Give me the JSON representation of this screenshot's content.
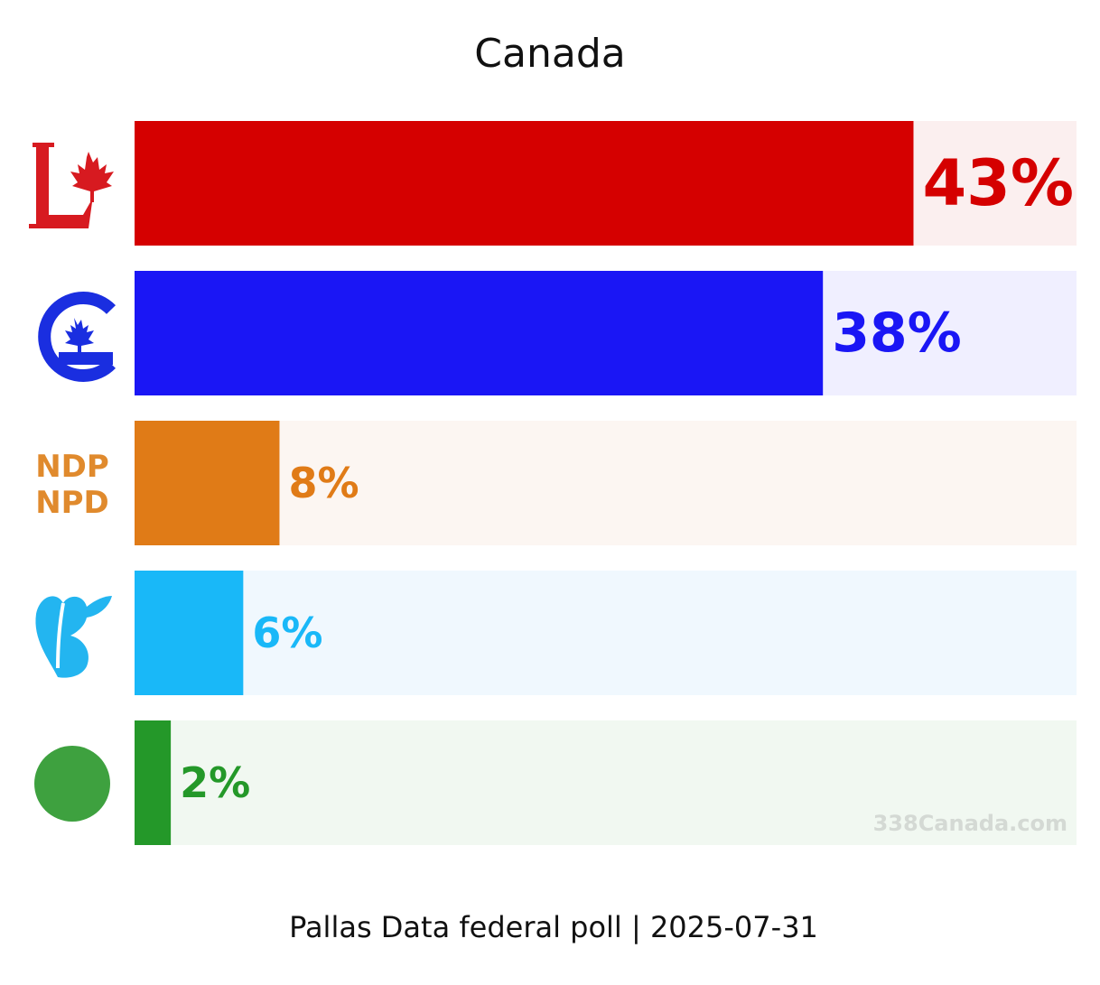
{
  "chart_data": {
    "type": "bar",
    "orientation": "horizontal",
    "title": "Canada",
    "categories": [
      "Liberal",
      "Conservative",
      "NDP",
      "Bloc Québécois",
      "Green"
    ],
    "logos": [
      "liberal-logo-icon",
      "conservative-logo-icon",
      "ndp-logo-icon",
      "bloc-logo-icon",
      "green-circle-icon"
    ],
    "logo_text": {
      "line1": "NDP",
      "line2": "NPD"
    },
    "values": [
      43,
      38,
      8,
      6,
      2
    ],
    "value_labels": [
      "43%",
      "38%",
      "8%",
      "6%",
      "2%"
    ],
    "colors": [
      "#d50000",
      "#1a16f5",
      "#e07b17",
      "#19b8f8",
      "#249829"
    ],
    "background_colors": [
      "#fbefef",
      "#f0efff",
      "#fcf6f2",
      "#f0f8fe",
      "#f1f8f1"
    ],
    "xlim": [
      0,
      52
    ],
    "grid": false,
    "footer": "Pallas Data federal poll | 2025-07-31",
    "watermark": "338Canada.com"
  }
}
